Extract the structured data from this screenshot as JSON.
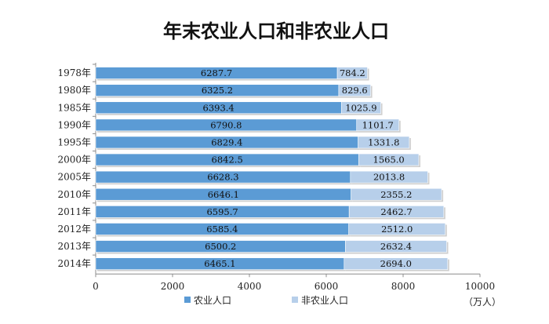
{
  "chart_data": {
    "type": "bar",
    "orientation": "horizontal",
    "stacked": true,
    "title": "年末农业人口和非农业人口",
    "unit": "（万人）",
    "categories": [
      "1978年",
      "1980年",
      "1985年",
      "1990年",
      "1995年",
      "2000年",
      "2005年",
      "2010年",
      "2011年",
      "2012年",
      "2013年",
      "2014年"
    ],
    "series": [
      {
        "name": "农业人口",
        "color": "#5b9bd5",
        "values": [
          6287.7,
          6325.2,
          6393.4,
          6790.8,
          6829.4,
          6842.5,
          6628.3,
          6646.1,
          6595.7,
          6585.4,
          6500.2,
          6465.1
        ]
      },
      {
        "name": "非农业人口",
        "color": "#b7cfea",
        "values": [
          784.2,
          829.6,
          1025.9,
          1101.7,
          1331.8,
          1565.0,
          2013.8,
          2355.2,
          2462.7,
          2512.0,
          2632.4,
          2694.0
        ]
      }
    ],
    "value_labels": [
      [
        "6287.7",
        "6325.2",
        "6393.4",
        "6790.8",
        "6829.4",
        "6842.5",
        "6628.3",
        "6646.1",
        "6595.7",
        "6585.4",
        "6500.2",
        "6465.1"
      ],
      [
        "784.2",
        "829.6",
        "1025.9",
        "1101.7",
        "1331.8",
        "1565.0",
        "2013.8",
        "2355.2",
        "2462.7",
        "2512.0",
        "2632.4",
        "2694.0"
      ]
    ],
    "xlim": [
      0,
      10000
    ],
    "xticks": [
      0,
      2000,
      4000,
      6000,
      8000,
      10000
    ],
    "grid": false,
    "legend_position": "bottom"
  }
}
